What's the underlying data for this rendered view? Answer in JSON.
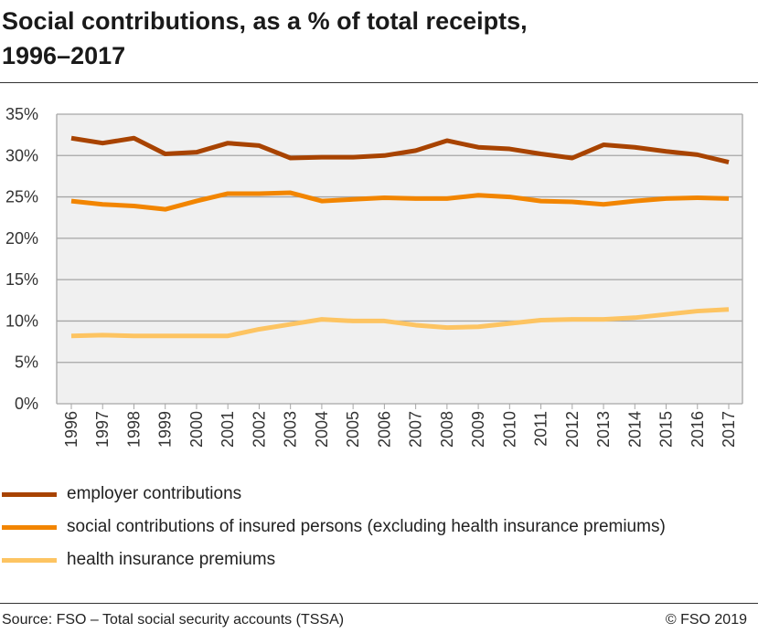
{
  "title_line1": "Social contributions, as a % of total receipts,",
  "title_line2": "1996–2017",
  "chart_data": {
    "type": "line",
    "title": "Social contributions, as a % of total receipts, 1996–2017",
    "x": [
      "1996",
      "1997",
      "1998",
      "1999",
      "2000",
      "2001",
      "2002",
      "2003",
      "2004",
      "2005",
      "2006",
      "2007",
      "2008",
      "2009",
      "2010",
      "2011",
      "2012",
      "2013",
      "2014",
      "2015",
      "2016",
      "2017"
    ],
    "ylim": [
      0,
      35
    ],
    "yticks": [
      "0%",
      "5%",
      "10%",
      "15%",
      "20%",
      "25%",
      "30%",
      "35%"
    ],
    "grid": true,
    "legend_position": "bottom",
    "series": [
      {
        "name": "employer contributions",
        "color": "#a84300",
        "values": [
          32.1,
          31.5,
          32.1,
          30.2,
          30.4,
          31.5,
          31.2,
          29.7,
          29.8,
          29.8,
          30.0,
          30.6,
          31.8,
          31.0,
          30.8,
          30.2,
          29.7,
          31.3,
          31.0,
          30.5,
          30.1,
          29.2
        ]
      },
      {
        "name": "social contributions of insured persons (excluding health insurance premiums)",
        "color": "#f28500",
        "values": [
          24.5,
          24.1,
          23.9,
          23.5,
          24.5,
          25.4,
          25.4,
          25.5,
          24.5,
          24.7,
          24.9,
          24.8,
          24.8,
          25.2,
          25.0,
          24.5,
          24.4,
          24.1,
          24.5,
          24.8,
          24.9,
          24.8
        ]
      },
      {
        "name": "health insurance premiums",
        "color": "#fdc462",
        "values": [
          8.2,
          8.3,
          8.2,
          8.2,
          8.2,
          8.2,
          9.0,
          9.6,
          10.2,
          10.0,
          10.0,
          9.5,
          9.2,
          9.3,
          9.7,
          10.1,
          10.2,
          10.2,
          10.4,
          10.8,
          11.2,
          11.4
        ]
      }
    ]
  },
  "source": "Source: FSO – Total social security accounts (TSSA)",
  "copyright": "© FSO 2019"
}
